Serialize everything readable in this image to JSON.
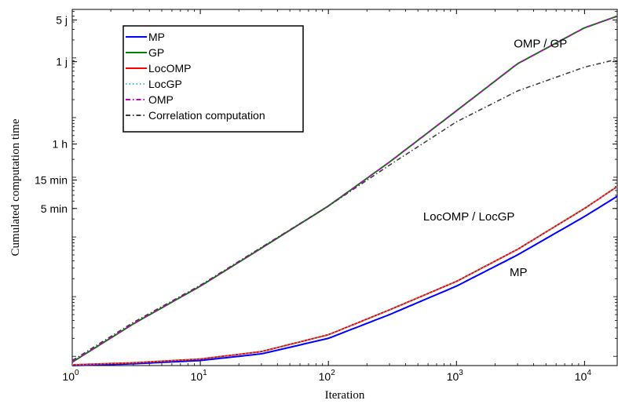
{
  "chart_data": {
    "type": "line",
    "title": "",
    "xlabel": "Iteration",
    "ylabel": "Cumulated computation time",
    "x_scale": "log",
    "y_scale": "log",
    "xlim": [
      1,
      18000
    ],
    "ylim": [
      0.7,
      650000
    ],
    "grid": false,
    "legend_position": "top-left",
    "x_ticks": [
      {
        "value": 1,
        "base": "10",
        "exp": "0"
      },
      {
        "value": 10,
        "base": "10",
        "exp": "1"
      },
      {
        "value": 100,
        "base": "10",
        "exp": "2"
      },
      {
        "value": 1000,
        "base": "10",
        "exp": "3"
      },
      {
        "value": 10000,
        "base": "10",
        "exp": "4"
      }
    ],
    "y_ticks": [
      {
        "value": 432000,
        "label": "5 j"
      },
      {
        "value": 86400,
        "label": "1 j"
      },
      {
        "value": 3600,
        "label": "1 h"
      },
      {
        "value": 900,
        "label": "15 min"
      },
      {
        "value": 300,
        "label": "5 min"
      }
    ],
    "series": [
      {
        "name": "MP",
        "color": "#0000ff",
        "dash": "solid",
        "x": [
          1,
          3,
          10,
          30,
          100,
          300,
          1000,
          3000,
          10000,
          18000
        ],
        "y": [
          0.7,
          0.75,
          0.85,
          1.1,
          2.0,
          5.0,
          15,
          50,
          220,
          480
        ]
      },
      {
        "name": "GP",
        "color": "#008000",
        "dash": "solid",
        "x": [
          1,
          3,
          10,
          30,
          100,
          300,
          1000,
          3000,
          10000,
          18000
        ],
        "y": [
          0.8,
          3.5,
          15,
          65,
          330,
          1800,
          13000,
          80000,
          320000,
          500000
        ]
      },
      {
        "name": "LocOMP",
        "color": "#ff0000",
        "dash": "solid",
        "x": [
          1,
          3,
          10,
          30,
          100,
          300,
          1000,
          3000,
          10000,
          18000
        ],
        "y": [
          0.72,
          0.78,
          0.9,
          1.2,
          2.3,
          6.0,
          18,
          62,
          300,
          700
        ]
      },
      {
        "name": "LocGP",
        "color": "#40c0c0",
        "dash": "dotted",
        "x": [
          1,
          3,
          10,
          30,
          100,
          300,
          1000,
          3000,
          10000,
          18000
        ],
        "y": [
          0.72,
          0.78,
          0.9,
          1.2,
          2.3,
          6.0,
          18,
          62,
          300,
          700
        ]
      },
      {
        "name": "OMP",
        "color": "#c000c0",
        "dash": "dashdot",
        "x": [
          1,
          3,
          10,
          30,
          100,
          300,
          1000,
          3000,
          10000,
          18000
        ],
        "y": [
          0.8,
          3.5,
          15,
          65,
          330,
          1800,
          13000,
          80000,
          320000,
          500000
        ]
      },
      {
        "name": "Correlation computation",
        "color": "#404040",
        "dash": "dashdot",
        "x": [
          1,
          3,
          10,
          30,
          100,
          300,
          1000,
          3000,
          10000,
          18000
        ],
        "y": [
          0.85,
          3.7,
          15.5,
          67,
          330,
          1600,
          8500,
          28000,
          70000,
          95000
        ]
      }
    ],
    "annotations": [
      {
        "text": "OMP / GP",
        "x": 2800,
        "y": 150000
      },
      {
        "text": "LocOMP / LocGP",
        "x": 550,
        "y": 190
      },
      {
        "text": "MP",
        "x": 2600,
        "y": 22
      }
    ]
  }
}
